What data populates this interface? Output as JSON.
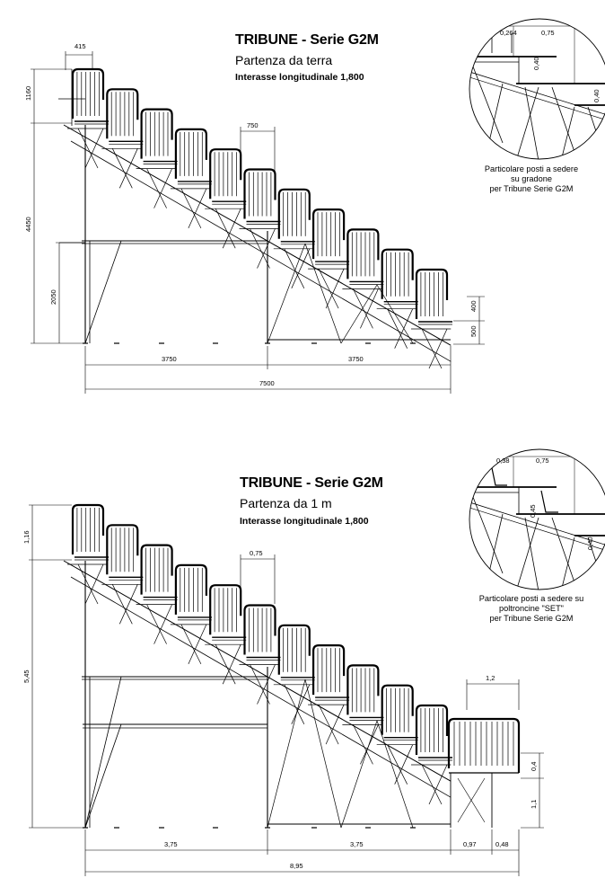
{
  "drawing_top": {
    "title": "TRIBUNE - Serie G2M",
    "subtitle": "Partenza da terra",
    "spec": "Interasse longitudinale 1,800",
    "dims": {
      "top_width": "415",
      "top_height": "1160",
      "step_width": "750",
      "total_height": "4450",
      "base_height": "2050",
      "front_upper": "400",
      "front_lower": "500",
      "span_left": "3750",
      "span_right": "3750",
      "total_span": "7500"
    },
    "detail": {
      "dim_a": "0,264",
      "dim_b": "0,75",
      "dim_c": "0,40",
      "dim_d": "0,40",
      "caption": [
        "Particolare posti a sedere",
        "su gradone",
        "per Tribune Serie G2M"
      ]
    }
  },
  "drawing_bottom": {
    "title": "TRIBUNE - Serie G2M",
    "subtitle": "Partenza da 1 m",
    "spec": "Interasse longitudinale 1,800",
    "dims": {
      "top_height": "1,16",
      "step_width": "0,75",
      "total_height": "5,45",
      "platform_width": "1,2",
      "front_upper": "0,4",
      "front_lower": "1,1",
      "span_left": "3,75",
      "span_right": "3,75",
      "span_platform": "0,97",
      "span_end": "0,48",
      "total_span": "8,95"
    },
    "detail": {
      "dim_a": "0,38",
      "dim_b": "0,75",
      "dim_c": "0,45",
      "dim_d": "0,40",
      "caption": [
        "Particolare posti a sedere su",
        "poltroncine \"SET\"",
        "per Tribune Serie G2M"
      ]
    }
  }
}
